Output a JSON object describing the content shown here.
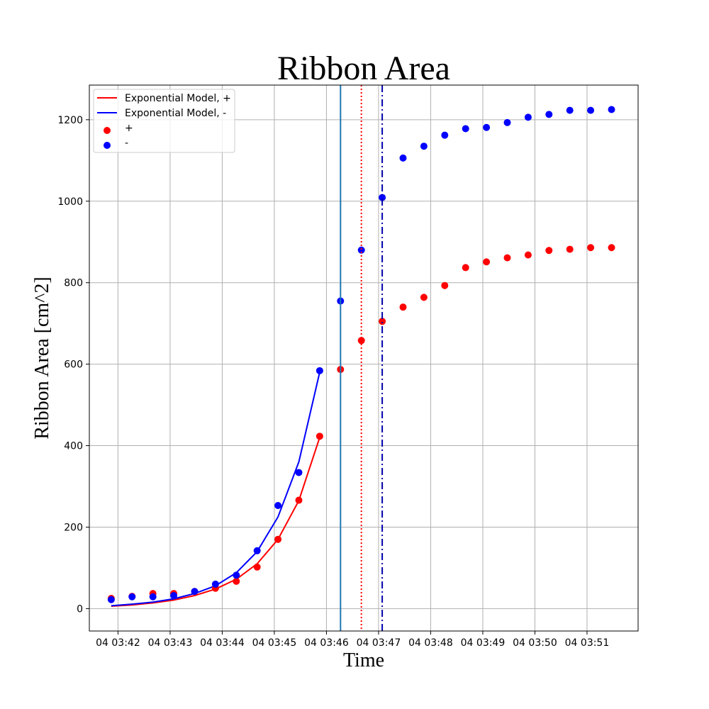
{
  "chart_data": {
    "type": "scatter",
    "title": "Ribbon Area",
    "xlabel": "Time",
    "ylabel": "Ribbon Area [cm^2]",
    "x_ticks": [
      "04 03:42",
      "04 03:43",
      "04 03:44",
      "04 03:45",
      "04 03:46",
      "04 03:47",
      "04 03:48",
      "04 03:49",
      "04 03:50",
      "04 03:51"
    ],
    "x_tick_values": [
      42,
      43,
      44,
      45,
      46,
      47,
      48,
      49,
      50,
      51
    ],
    "xlim": [
      41.45,
      51.98
    ],
    "ylim": [
      -55,
      1285
    ],
    "y_ticks": [
      0,
      200,
      400,
      600,
      800,
      1000,
      1200
    ],
    "grid": true,
    "legend_position": "top-left",
    "x_unit": "minutes after 03:00",
    "series": [
      {
        "name": "Exponential Model, +",
        "kind": "line",
        "color": "#ff0000",
        "x": [
          41.87,
          42.27,
          42.67,
          43.07,
          43.47,
          43.87,
          44.27,
          44.67,
          45.07,
          45.47,
          45.87
        ],
        "y": [
          6,
          9,
          14,
          21,
          32,
          48,
          72,
          110,
          170,
          265,
          420
        ]
      },
      {
        "name": "Exponential Model, -",
        "kind": "line",
        "color": "#0000ff",
        "x": [
          41.87,
          42.27,
          42.67,
          43.07,
          43.47,
          43.87,
          44.27,
          44.67,
          45.07,
          45.47,
          45.87
        ],
        "y": [
          7,
          11,
          16,
          24,
          37,
          56,
          88,
          140,
          225,
          360,
          580
        ]
      },
      {
        "name": "+",
        "kind": "scatter",
        "color": "#ff0000",
        "x": [
          41.87,
          42.27,
          42.67,
          43.07,
          43.47,
          43.87,
          44.27,
          44.67,
          45.07,
          45.47,
          45.87,
          46.27,
          46.67,
          47.07,
          47.47,
          47.87,
          48.27,
          48.67,
          49.07,
          49.47,
          49.87,
          50.27,
          50.67,
          51.07,
          51.47
        ],
        "y": [
          25,
          30,
          37,
          37,
          42,
          50,
          67,
          102,
          170,
          266,
          423,
          587,
          658,
          705,
          740,
          764,
          793,
          837,
          851,
          861,
          868,
          879,
          882,
          886,
          886
        ]
      },
      {
        "name": "-",
        "kind": "scatter",
        "color": "#0000ff",
        "x": [
          41.87,
          42.27,
          42.67,
          43.07,
          43.47,
          43.87,
          44.27,
          44.67,
          45.07,
          45.47,
          45.87,
          46.27,
          46.67,
          47.07,
          47.47,
          47.87,
          48.27,
          48.67,
          49.07,
          49.47,
          49.87,
          50.27,
          50.67,
          51.07,
          51.47
        ],
        "y": [
          22,
          29,
          29,
          32,
          42,
          60,
          82,
          142,
          253,
          334,
          584,
          755,
          880,
          1009,
          1106,
          1135,
          1162,
          1178,
          1181,
          1193,
          1206,
          1213,
          1223,
          1223,
          1225
        ]
      }
    ],
    "vlines": [
      {
        "x": 46.27,
        "style": "solid",
        "color": "#1f77b4"
      },
      {
        "x": 46.67,
        "style": "dotted",
        "color": "#ff0000"
      },
      {
        "x": 47.07,
        "style": "dashdot",
        "color": "#0000aa"
      }
    ]
  }
}
